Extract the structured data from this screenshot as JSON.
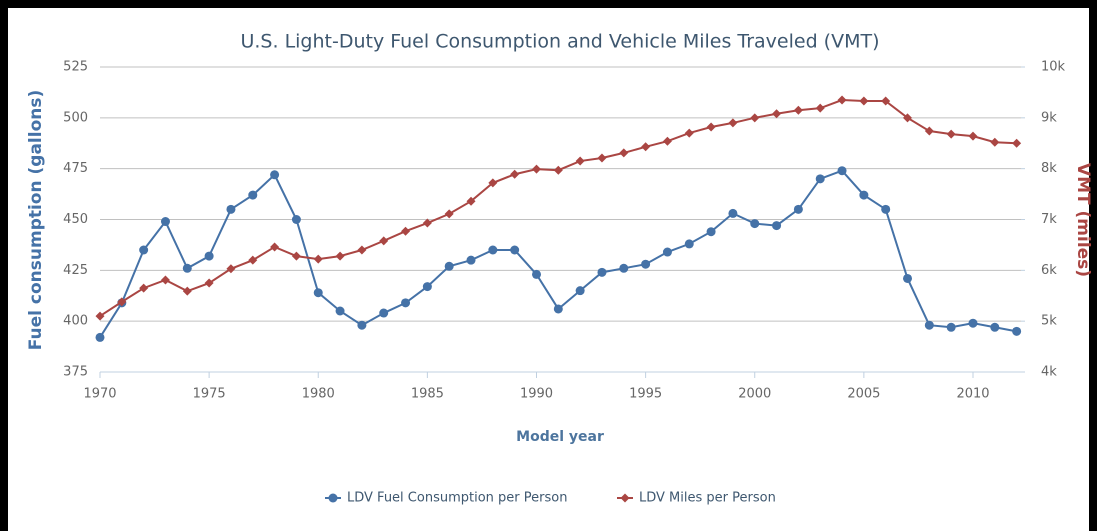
{
  "chart_data": {
    "type": "line",
    "title": "U.S. Light-Duty Fuel Consumption and Vehicle Miles Traveled (VMT)",
    "x_label": "Model year",
    "y_label": "Fuel consumption (gallons)",
    "y2_label": "VMT (miles)",
    "x": [
      1970,
      1971,
      1972,
      1973,
      1974,
      1975,
      1976,
      1977,
      1978,
      1979,
      1980,
      1981,
      1982,
      1983,
      1984,
      1985,
      1986,
      1987,
      1988,
      1989,
      1990,
      1991,
      1992,
      1993,
      1994,
      1995,
      1996,
      1997,
      1998,
      1999,
      2000,
      2001,
      2002,
      2003,
      2004,
      2005,
      2006,
      2007,
      2008,
      2009,
      2010,
      2011,
      2012
    ],
    "xlim": [
      1970,
      2012.2
    ],
    "xticks": [
      1970,
      1975,
      1980,
      1985,
      1990,
      1995,
      2000,
      2005,
      2010
    ],
    "ylim": [
      375,
      525
    ],
    "yticks": [
      375,
      400,
      425,
      450,
      475,
      500,
      525
    ],
    "y2lim": [
      4000,
      10000
    ],
    "y2ticks": [
      {
        "value": 4000,
        "label": "4k"
      },
      {
        "value": 5000,
        "label": "5k"
      },
      {
        "value": 6000,
        "label": "6k"
      },
      {
        "value": 7000,
        "label": "7k"
      },
      {
        "value": 8000,
        "label": "8k"
      },
      {
        "value": 9000,
        "label": "9k"
      },
      {
        "value": 10000,
        "label": "10k"
      }
    ],
    "grid": true,
    "legend": "bottom",
    "series": [
      {
        "name": "LDV Fuel Consumption per Person",
        "color": "#4572a7",
        "marker": "circle",
        "values": [
          392,
          409,
          435,
          449,
          426,
          432,
          455,
          462,
          472,
          450,
          414,
          405,
          398,
          404,
          409,
          417,
          427,
          430,
          435,
          435,
          423,
          406,
          415,
          424,
          426,
          428,
          434,
          438,
          444,
          453,
          448,
          447,
          455,
          470,
          474,
          462,
          455,
          421,
          398,
          397,
          399,
          397,
          395
        ]
      },
      {
        "name": "LDV Miles per Person",
        "color": "#aa4643",
        "marker": "diamond",
        "axis": "y2",
        "values": [
          5100,
          5380,
          5650,
          5810,
          5590,
          5750,
          6030,
          6200,
          6460,
          6280,
          6220,
          6280,
          6400,
          6580,
          6770,
          6930,
          7110,
          7360,
          7720,
          7890,
          7990,
          7970,
          8150,
          8210,
          8310,
          8430,
          8540,
          8700,
          8820,
          8900,
          9000,
          9080,
          9150,
          9190,
          9350,
          9330,
          9330,
          9000,
          8740,
          8680,
          8640,
          8520,
          8500
        ]
      }
    ]
  }
}
